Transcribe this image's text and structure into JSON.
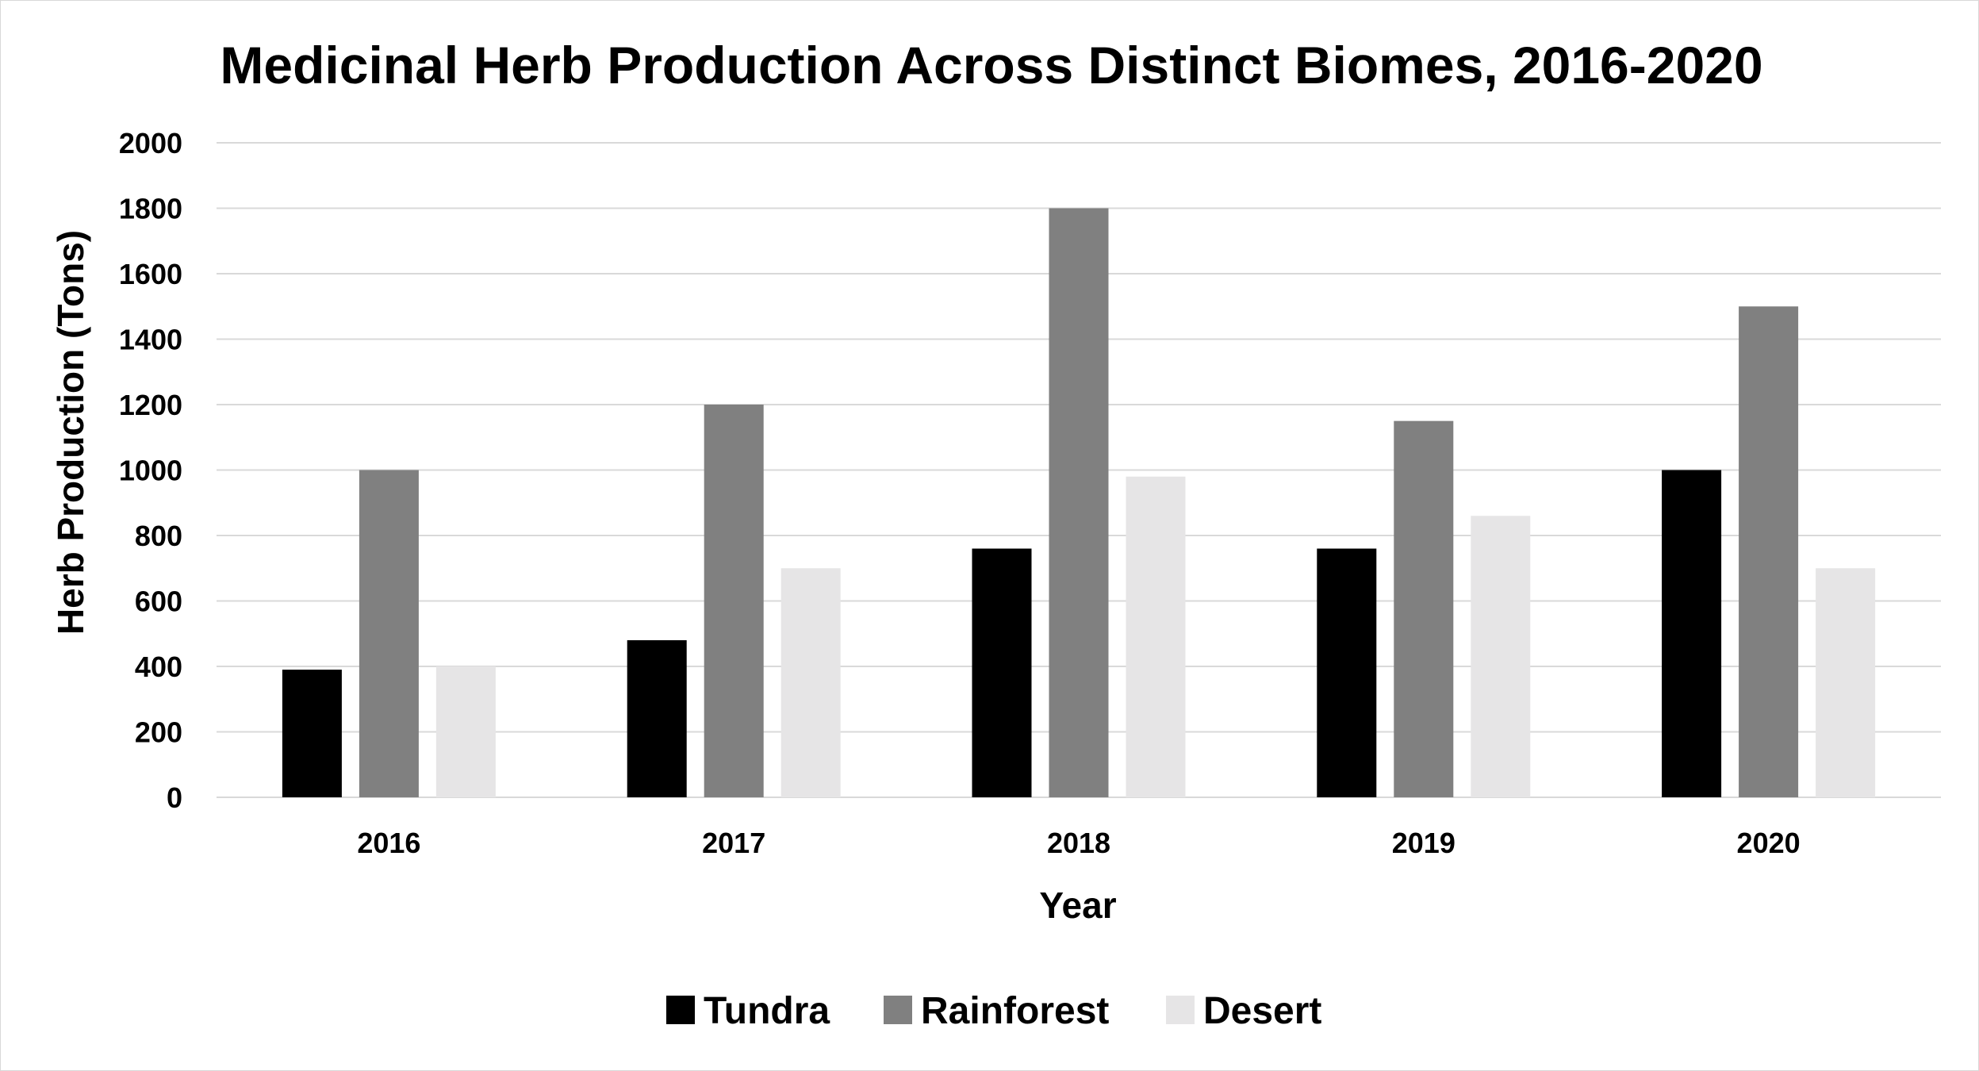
{
  "chart_data": {
    "type": "bar",
    "title": "Medicinal Herb Production Across Distinct Biomes, 2016-2020",
    "xlabel": "Year",
    "ylabel": "Herb Production (Tons)",
    "categories": [
      "2016",
      "2017",
      "2018",
      "2019",
      "2020"
    ],
    "series": [
      {
        "name": "Tundra",
        "color": "#000000",
        "values": [
          390,
          480,
          760,
          760,
          1000
        ]
      },
      {
        "name": "Rainforest",
        "color": "#808080",
        "values": [
          1000,
          1200,
          1800,
          1150,
          1500
        ]
      },
      {
        "name": "Desert",
        "color": "#e6e5e6",
        "values": [
          400,
          700,
          980,
          860,
          700
        ]
      }
    ],
    "ylim": [
      0,
      2000
    ],
    "yticks": [
      "0",
      "200",
      "400",
      "600",
      "800",
      "1000",
      "1200",
      "1400",
      "1600",
      "1800",
      "2000"
    ],
    "grid": true,
    "gridline_color": "#d9d9d9",
    "legend_position": "bottom"
  }
}
